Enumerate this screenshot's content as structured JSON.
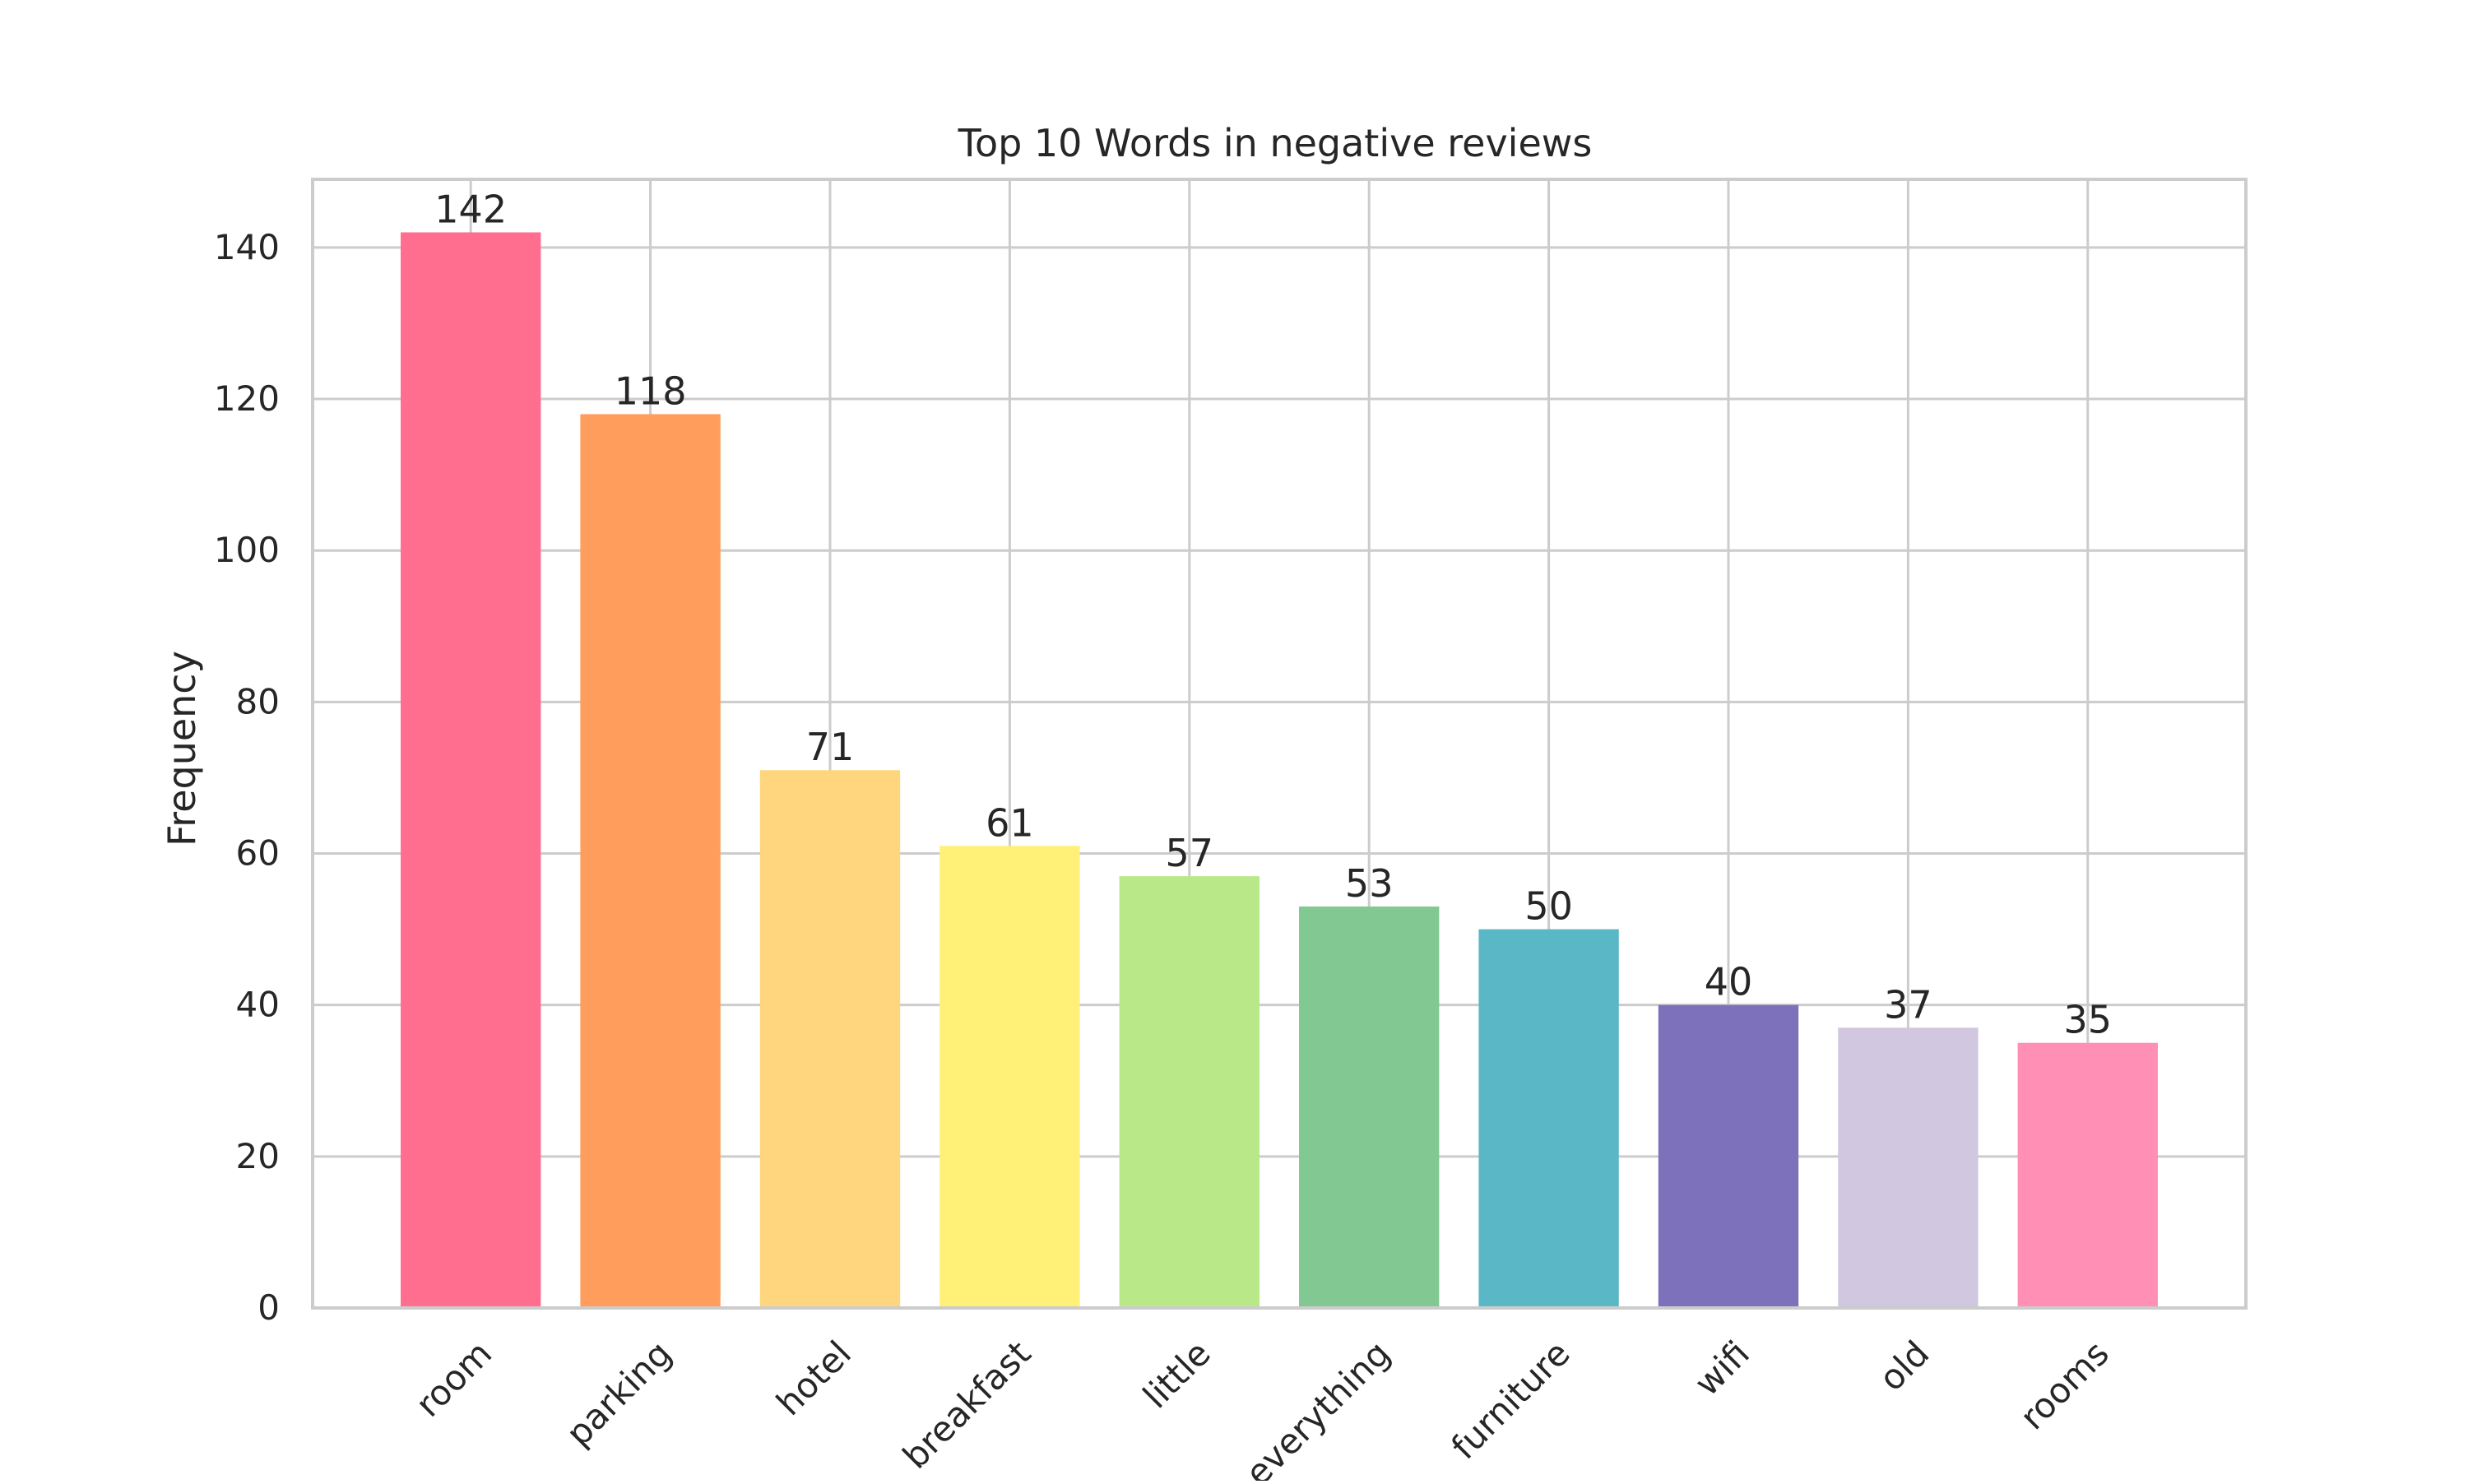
{
  "chart_data": {
    "type": "bar",
    "title": "Top 10 Words in negative reviews",
    "xlabel": "",
    "ylabel": "Frequency",
    "ylim": [
      0,
      149
    ],
    "yticks": [
      0,
      20,
      40,
      60,
      80,
      100,
      120,
      140
    ],
    "grid": true,
    "legend": "none",
    "categories": [
      "room",
      "parking",
      "hotel",
      "breakfast",
      "little",
      "everything",
      "furniture",
      "wifi",
      "old",
      "rooms"
    ],
    "values": [
      142,
      118,
      71,
      61,
      57,
      53,
      50,
      40,
      37,
      35
    ],
    "colors": [
      "#ff6e8f",
      "#ff9d5c",
      "#ffd67e",
      "#fff077",
      "#b8e887",
      "#82c893",
      "#5ab8c6",
      "#7d71bb",
      "#d1c7e1",
      "#ff8fb4"
    ],
    "gridColor": "#cccccc",
    "axisColor": "#cccccc",
    "textColor": "#262626"
  }
}
